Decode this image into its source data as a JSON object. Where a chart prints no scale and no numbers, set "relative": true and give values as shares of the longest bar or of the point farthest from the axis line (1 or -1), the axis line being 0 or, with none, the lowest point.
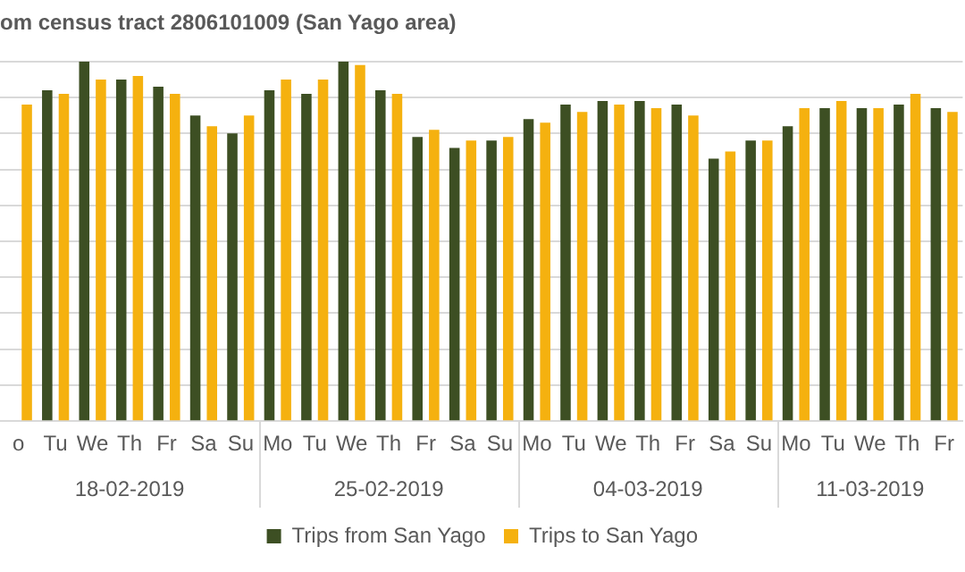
{
  "chart_data": {
    "type": "bar",
    "title": "om census tract 2806101009 (San Yago area)",
    "relative": true,
    "grid": "y",
    "legend": "bottom",
    "categories": [
      "o",
      "Tu",
      "We",
      "Th",
      "Fr",
      "Sa",
      "Su",
      "Mo",
      "Tu",
      "We",
      "Th",
      "Fr",
      "Sa",
      "Su",
      "Mo",
      "Tu",
      "We",
      "Th",
      "Fr",
      "Sa",
      "Su",
      "Mo",
      "Tu",
      "We",
      "Th",
      "Fr"
    ],
    "annotations": [
      "18-02-2019",
      "25-02-2019",
      "04-03-2019",
      "11-03-2019"
    ],
    "series": [
      {
        "name": "Trips from San Yago",
        "color": "#3d4f23",
        "values": [
          null,
          0.92,
          1,
          0.95,
          0.93,
          0.85,
          0.8,
          0.92,
          0.91,
          1,
          0.92,
          0.79,
          0.76,
          0.78,
          0.84,
          0.88,
          0.89,
          0.89,
          0.88,
          0.73,
          0.78,
          0.82,
          0.87,
          0.87,
          0.88,
          0.87
        ]
      },
      {
        "name": "Trips to San Yago",
        "color": "#f5b10f",
        "values": [
          0.88,
          0.91,
          0.95,
          0.96,
          0.91,
          0.82,
          0.85,
          0.95,
          0.95,
          0.99,
          0.91,
          0.81,
          0.78,
          0.79,
          0.83,
          0.86,
          0.88,
          0.87,
          0.85,
          0.75,
          0.78,
          0.87,
          0.89,
          0.87,
          0.91,
          0.86
        ]
      }
    ]
  }
}
